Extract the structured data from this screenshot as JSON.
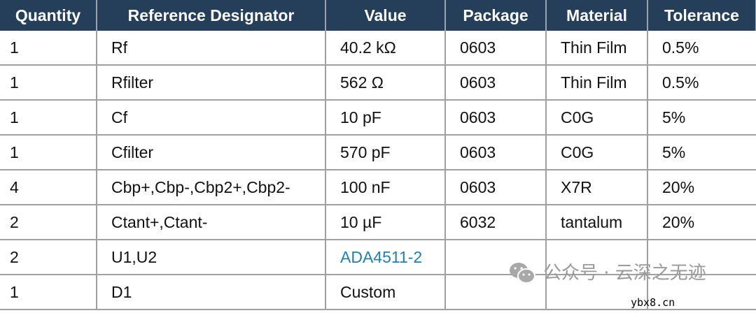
{
  "table": {
    "headers": [
      "Quantity",
      "Reference Designator",
      "Value",
      "Package",
      "Material",
      "Tolerance"
    ],
    "rows": [
      [
        "1",
        "Rf",
        "40.2 kΩ",
        "0603",
        "Thin Film",
        "0.5%"
      ],
      [
        "1",
        "Rfilter",
        "562 Ω",
        "0603",
        "Thin Film",
        "0.5%"
      ],
      [
        "1",
        "Cf",
        "10 pF",
        "0603",
        "C0G",
        "5%"
      ],
      [
        "1",
        "Cfilter",
        "570 pF",
        "0603",
        "C0G",
        "5%"
      ],
      [
        "4",
        "Cbp+,Cbp-,Cbp2+,Cbp2-",
        "100 nF",
        "0603",
        "X7R",
        "20%"
      ],
      [
        "2",
        "Ctant+,Ctant-",
        "10 µF",
        "6032",
        "tantalum",
        "20%"
      ],
      [
        "2",
        "U1,U2",
        "ADA4511-2",
        "",
        "",
        ""
      ],
      [
        "1",
        "D1",
        "Custom",
        "",
        "",
        ""
      ]
    ]
  },
  "colors": {
    "header_bg": "#253f5a",
    "link": "#1f7fb0"
  },
  "watermark": {
    "text": "公众号 · 云深之无迹",
    "site": "ybx8.cn",
    "icon": "wechat-icon"
  }
}
